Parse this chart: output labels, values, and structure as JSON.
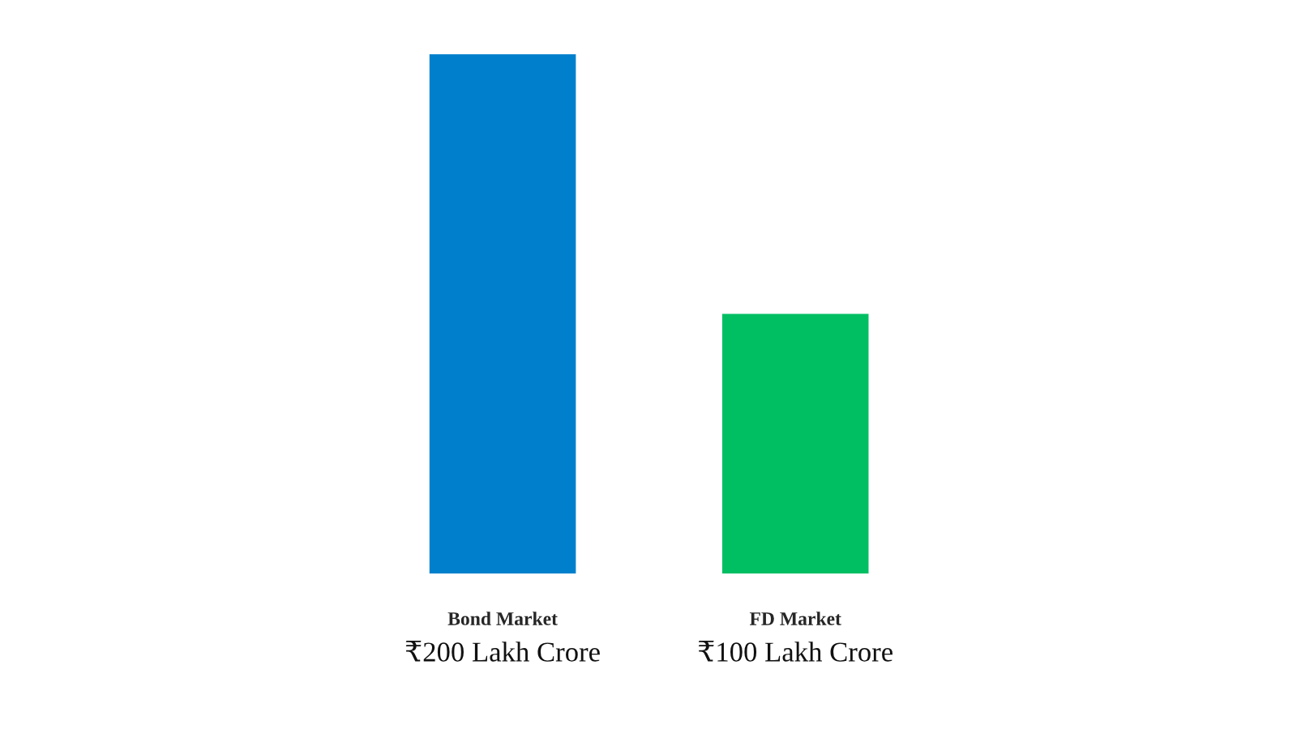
{
  "chart_data": {
    "type": "bar",
    "categories": [
      "Bond Market",
      "FD Market"
    ],
    "values": [
      200,
      100
    ],
    "colors": [
      "#0080cc",
      "#00bf63"
    ],
    "value_labels": [
      "₹200 Lakh Crore",
      "₹100 Lakh Crore"
    ],
    "ylim": [
      0,
      200
    ],
    "tick_labels": "x"
  }
}
